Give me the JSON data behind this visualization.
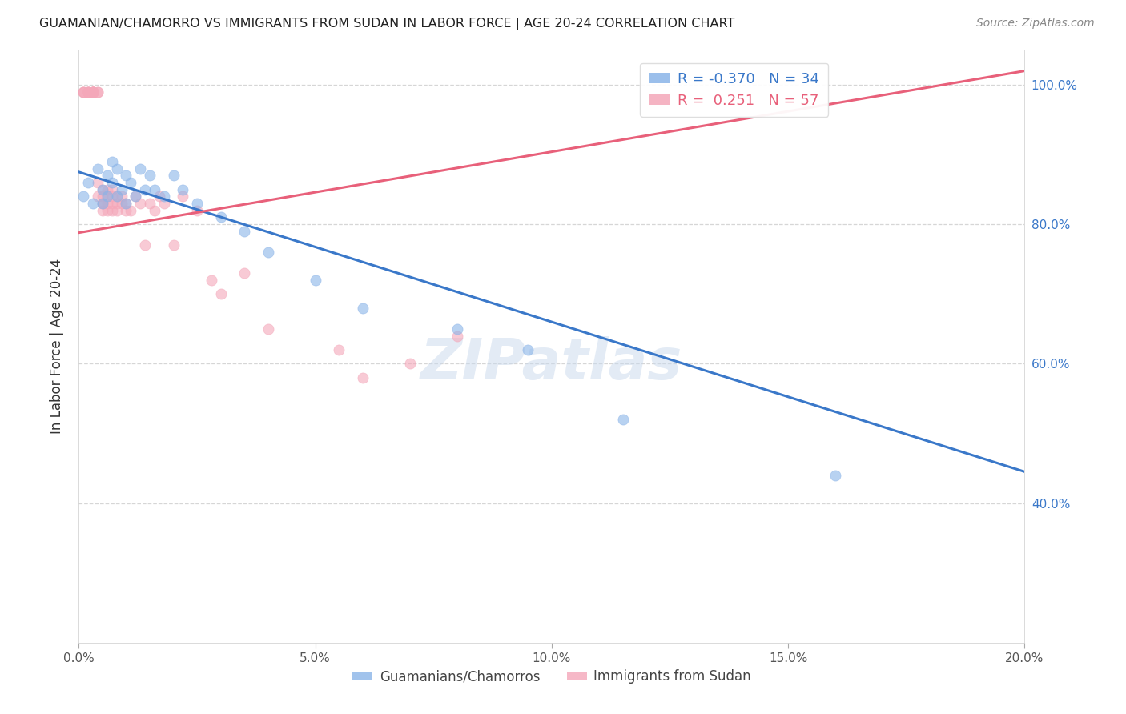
{
  "title": "GUAMANIAN/CHAMORRO VS IMMIGRANTS FROM SUDAN IN LABOR FORCE | AGE 20-24 CORRELATION CHART",
  "source": "Source: ZipAtlas.com",
  "ylabel": "In Labor Force | Age 20-24",
  "xmin": 0.0,
  "xmax": 0.2,
  "ymin": 0.2,
  "ymax": 1.05,
  "ytick_labels": [
    "100.0%",
    "80.0%",
    "60.0%",
    "40.0%"
  ],
  "ytick_values": [
    1.0,
    0.8,
    0.6,
    0.4
  ],
  "xtick_labels": [
    "0.0%",
    "5.0%",
    "10.0%",
    "15.0%",
    "20.0%"
  ],
  "xtick_values": [
    0.0,
    0.05,
    0.1,
    0.15,
    0.2
  ],
  "legend_labels": [
    "Guamanians/Chamorros",
    "Immigrants from Sudan"
  ],
  "R_blue": -0.37,
  "N_blue": 34,
  "R_pink": 0.251,
  "N_pink": 57,
  "blue_color": "#8ab4e8",
  "pink_color": "#f4a7b9",
  "blue_line_color": "#3a78c9",
  "pink_line_color": "#e8607a",
  "watermark": "ZIPatlas",
  "blue_line_x0": 0.0,
  "blue_line_y0": 0.875,
  "blue_line_x1": 0.2,
  "blue_line_y1": 0.445,
  "pink_line_x0": 0.0,
  "pink_line_y0": 0.788,
  "pink_line_x1": 0.2,
  "pink_line_y1": 1.02,
  "blue_points_x": [
    0.001,
    0.002,
    0.003,
    0.004,
    0.005,
    0.005,
    0.006,
    0.006,
    0.007,
    0.007,
    0.008,
    0.008,
    0.009,
    0.01,
    0.01,
    0.011,
    0.012,
    0.013,
    0.014,
    0.015,
    0.016,
    0.018,
    0.02,
    0.022,
    0.025,
    0.03,
    0.035,
    0.04,
    0.05,
    0.06,
    0.08,
    0.095,
    0.115,
    0.16
  ],
  "blue_points_y": [
    0.84,
    0.86,
    0.83,
    0.88,
    0.85,
    0.83,
    0.87,
    0.84,
    0.89,
    0.86,
    0.84,
    0.88,
    0.85,
    0.87,
    0.83,
    0.86,
    0.84,
    0.88,
    0.85,
    0.87,
    0.85,
    0.84,
    0.87,
    0.85,
    0.83,
    0.81,
    0.79,
    0.76,
    0.72,
    0.68,
    0.65,
    0.62,
    0.52,
    0.44
  ],
  "pink_points_x": [
    0.001,
    0.001,
    0.001,
    0.002,
    0.002,
    0.002,
    0.002,
    0.003,
    0.003,
    0.003,
    0.003,
    0.003,
    0.003,
    0.003,
    0.004,
    0.004,
    0.004,
    0.004,
    0.005,
    0.005,
    0.005,
    0.005,
    0.005,
    0.006,
    0.006,
    0.006,
    0.006,
    0.007,
    0.007,
    0.007,
    0.007,
    0.008,
    0.008,
    0.008,
    0.009,
    0.009,
    0.01,
    0.01,
    0.011,
    0.012,
    0.013,
    0.014,
    0.015,
    0.016,
    0.017,
    0.018,
    0.02,
    0.022,
    0.025,
    0.028,
    0.03,
    0.035,
    0.04,
    0.055,
    0.06,
    0.07,
    0.08
  ],
  "pink_points_y": [
    0.99,
    0.99,
    0.99,
    0.99,
    0.99,
    0.99,
    0.99,
    0.99,
    0.99,
    0.99,
    0.99,
    0.99,
    0.99,
    0.99,
    0.99,
    0.99,
    0.86,
    0.84,
    0.85,
    0.83,
    0.82,
    0.84,
    0.83,
    0.85,
    0.84,
    0.83,
    0.82,
    0.85,
    0.84,
    0.83,
    0.82,
    0.84,
    0.83,
    0.82,
    0.83,
    0.84,
    0.82,
    0.83,
    0.82,
    0.84,
    0.83,
    0.77,
    0.83,
    0.82,
    0.84,
    0.83,
    0.77,
    0.84,
    0.82,
    0.72,
    0.7,
    0.73,
    0.65,
    0.62,
    0.58,
    0.6,
    0.64
  ]
}
